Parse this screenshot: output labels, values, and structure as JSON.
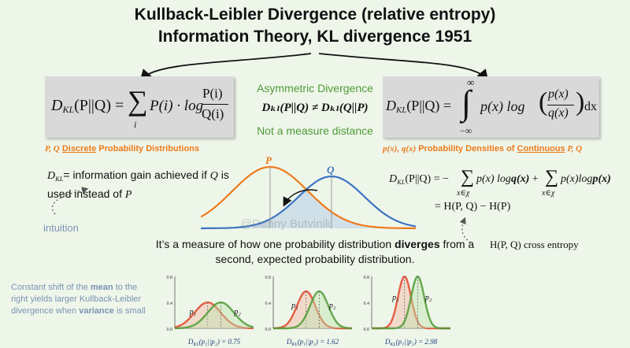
{
  "title": {
    "line1": "Kullback-Leibler Divergence (relative entropy)",
    "line2": "Information Theory, KL divergence 1951"
  },
  "middle": {
    "asym": "Asymmetric Divergence",
    "asym_formula": "Dₖₗ(P||Q) ≠ Dₖₗ(Q||P)",
    "not_measure": "Not a measure distance"
  },
  "left_formula": {
    "lhs": "D",
    "lhs_sub": "KL",
    "lhs_args": "(P||Q) =",
    "sum_symbol": "∑",
    "sum_index": "i",
    "body": "P(i) · log",
    "num": "P(i)",
    "den": "Q(i)",
    "caption_pq": "P, Q",
    "caption_discrete": "Discrete",
    "caption_rest": " Probability Distributions"
  },
  "right_formula": {
    "lhs": "D",
    "lhs_sub": "KL",
    "lhs_args": "(P||Q) =",
    "upper": "∞",
    "lower": "−∞",
    "integral": "∫",
    "body_pre": "p(x) log",
    "num": "p(x)",
    "den": "q(x)",
    "dx": "dx",
    "caption_pq": "p(x), q(x)",
    "caption_mid": " Probability Densities of ",
    "caption_cont": "Continuous",
    "caption_end": " P, Q"
  },
  "info_gain": {
    "lhs": "D",
    "lhs_sub": "KL",
    "text1": "= information gain achieved if ",
    "q1": "Q",
    "text2": " is",
    "text3": "used instead of ",
    "p1": "P"
  },
  "intuition": "intuition",
  "center_labels": {
    "p": "P",
    "q": "Q"
  },
  "watermark": "@Danny Butvinik",
  "entropy_eq": {
    "line1_lhs": "D",
    "line1_sub": "KL",
    "line1_args": "(P||Q) = −",
    "sum1": "∑",
    "sum1_index": "x∈χ",
    "term1": "p(x) log",
    "term1_bold": "q(x)",
    "plus": " +",
    "sum2": "∑",
    "sum2_index": "x∈χ",
    "term2": "p(x)log",
    "term2_bold": "p(x)",
    "line2": "= H(P, Q) − H(P)"
  },
  "cross_entropy": "H(P, Q) cross entropy",
  "measure_text": {
    "part1": "It’s a measure of how one probability distribution ",
    "bold": "diverges",
    "part2": " from a",
    "line2": "second, expected probability distribution."
  },
  "shift_note": {
    "l1a": "Constant shift of the ",
    "l1b": "mean",
    "l1c": " to the",
    "l2": "right yields larger Kullback-Leibler",
    "l3a": "divergence when ",
    "l3b": "variance",
    "l3c": " is small"
  },
  "colors": {
    "background": "#eef6ea",
    "orange": "#ee7a1a",
    "blue": "#3d73c1",
    "green": "#4f9a35",
    "red": "#e0452a",
    "gray_note": "#7a93b3"
  },
  "chart_data": [
    {
      "type": "line",
      "series": [
        {
          "name": "p₁",
          "mean": 0.0,
          "std": 1.0
        },
        {
          "name": "p₂",
          "mean": 1.0,
          "std": 1.0
        }
      ],
      "yticks": [
        "0.0",
        "0.4",
        "0.8"
      ],
      "ylim": [
        0,
        0.8
      ],
      "caption_pre": "D",
      "caption_sub": "KL",
      "caption_args": "(p₁||p₂) = 0.75"
    },
    {
      "type": "line",
      "series": [
        {
          "name": "p₁",
          "mean": 0.0,
          "std": 0.7
        },
        {
          "name": "p₂",
          "mean": 1.0,
          "std": 0.7
        }
      ],
      "yticks": [
        "0.0",
        "0.4",
        "0.8"
      ],
      "ylim": [
        0,
        0.8
      ],
      "caption_pre": "D",
      "caption_sub": "KL",
      "caption_args": "(p₁||p₂) = 1.62"
    },
    {
      "type": "line",
      "series": [
        {
          "name": "p₁",
          "mean": 0.0,
          "std": 0.5
        },
        {
          "name": "p₂",
          "mean": 1.0,
          "std": 0.5
        }
      ],
      "yticks": [
        "0.0",
        "0.4",
        "0.8"
      ],
      "ylim": [
        0,
        0.8
      ],
      "caption_pre": "D",
      "caption_sub": "KL",
      "caption_args": "(p₁||p₂) = 2.98"
    }
  ]
}
